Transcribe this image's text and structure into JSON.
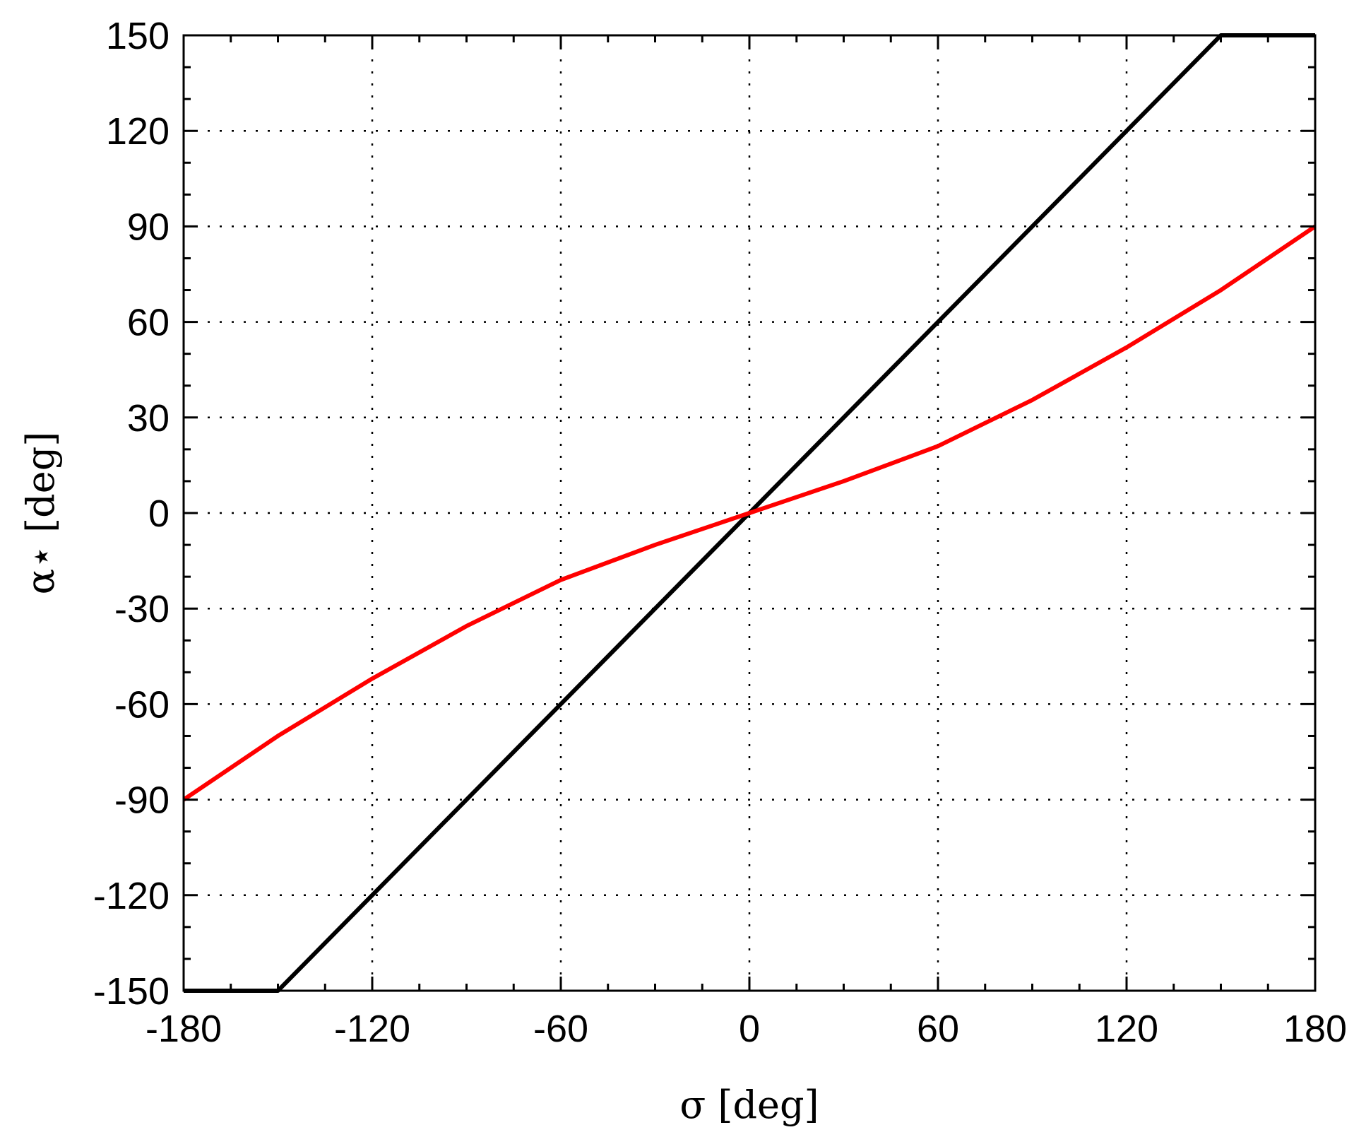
{
  "chart_data": {
    "type": "line",
    "xlabel": "σ [deg]",
    "ylabel": "α⋆ [deg]",
    "xlim": [
      -180,
      180
    ],
    "ylim": [
      -150,
      150
    ],
    "x_ticks": [
      -180,
      -120,
      -60,
      0,
      60,
      120,
      180
    ],
    "y_ticks": [
      -150,
      -120,
      -90,
      -60,
      -30,
      0,
      30,
      60,
      90,
      120,
      150
    ],
    "grid": true,
    "series": [
      {
        "color": "#000000",
        "x": [
          -180,
          -150,
          150,
          180
        ],
        "y": [
          -150,
          -150,
          150,
          150
        ]
      },
      {
        "color": "#ff0000",
        "x": [
          -180,
          -150,
          -120,
          -90,
          -60,
          -30,
          0,
          30,
          60,
          90,
          120,
          150,
          180
        ],
        "y": [
          -90,
          -70,
          -52,
          -35.5,
          -21,
          -10,
          0,
          10,
          21,
          35.5,
          52,
          70,
          90
        ]
      }
    ]
  }
}
